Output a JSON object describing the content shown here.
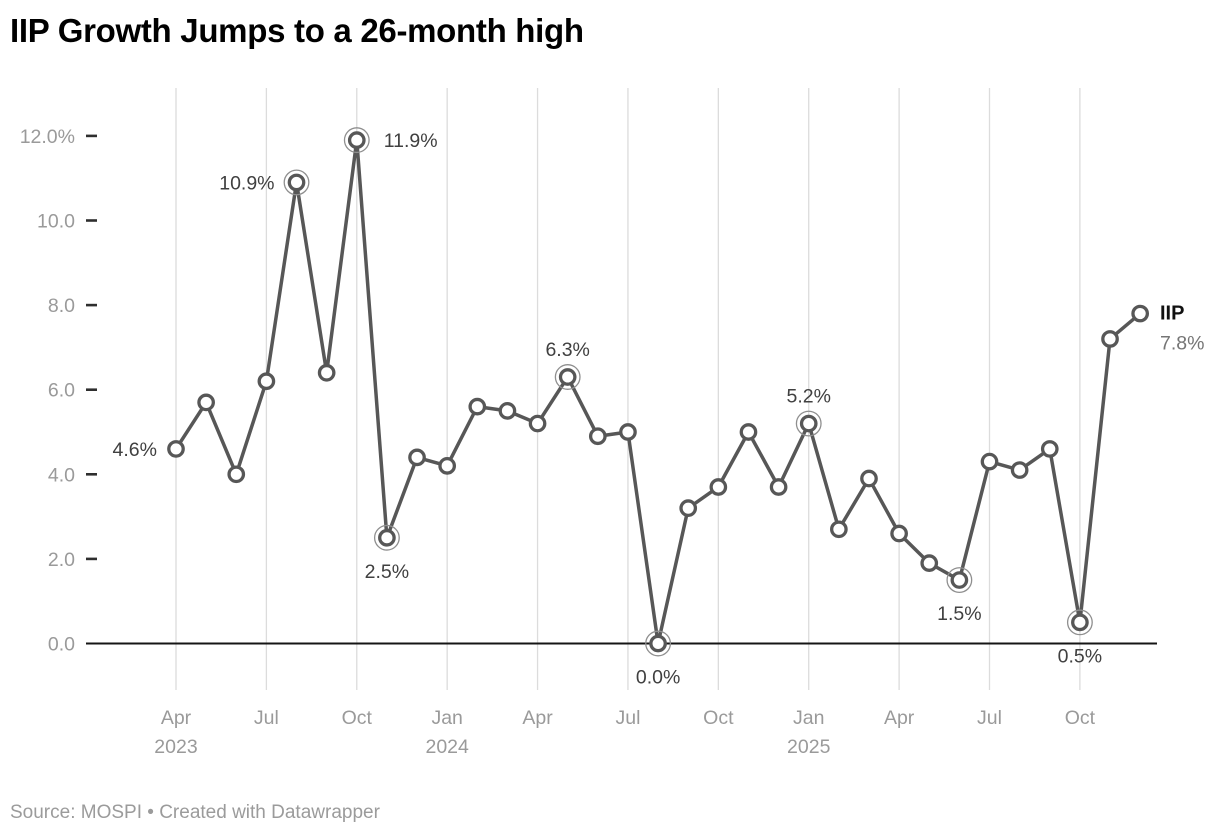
{
  "title": "IIP Growth Jumps to a 26-month high",
  "footer": "Source: MOSPI • Created with Datawrapper",
  "chart_data": {
    "type": "line",
    "title": "IIP Growth Jumps to a 26-month high",
    "source": "Source: MOSPI",
    "attribution": "Created with Datawrapper",
    "x": [
      "Apr 2023",
      "May 2023",
      "Jun 2023",
      "Jul 2023",
      "Aug 2023",
      "Sep 2023",
      "Oct 2023",
      "Nov 2023",
      "Dec 2023",
      "Jan 2024",
      "Feb 2024",
      "Mar 2024",
      "Apr 2024",
      "May 2024",
      "Jun 2024",
      "Jul 2024",
      "Aug 2024",
      "Sep 2024",
      "Oct 2024",
      "Nov 2024",
      "Dec 2024",
      "Jan 2025",
      "Feb 2025",
      "Mar 2025",
      "Apr 2025",
      "May 2025",
      "Jun 2025",
      "Jul 2025",
      "Aug 2025",
      "Sep 2025",
      "Oct 2025",
      "Nov 2025",
      "Dec 2025"
    ],
    "series": [
      {
        "name": "IIP",
        "values": [
          4.6,
          5.7,
          4.0,
          6.2,
          10.9,
          6.4,
          11.9,
          2.5,
          4.4,
          4.2,
          5.6,
          5.5,
          5.2,
          6.3,
          4.9,
          5.0,
          0.0,
          3.2,
          3.7,
          5.0,
          3.7,
          5.2,
          2.7,
          3.9,
          2.6,
          1.9,
          1.5,
          4.3,
          4.1,
          4.6,
          0.5,
          7.2,
          7.8
        ]
      }
    ],
    "unit": "%",
    "ylim": [
      0,
      12
    ],
    "grid": "vertical-only",
    "legend_position": "end-of-line",
    "yticks": [
      {
        "v": 0,
        "label": "0.0"
      },
      {
        "v": 2,
        "label": "2.0"
      },
      {
        "v": 4,
        "label": "4.0"
      },
      {
        "v": 6,
        "label": "6.0"
      },
      {
        "v": 8,
        "label": "8.0"
      },
      {
        "v": 10,
        "label": "10.0"
      },
      {
        "v": 12,
        "label": "12.0%"
      }
    ],
    "xticks": [
      {
        "i": 0,
        "month": "Apr",
        "year": "2023"
      },
      {
        "i": 3,
        "month": "Jul"
      },
      {
        "i": 6,
        "month": "Oct"
      },
      {
        "i": 9,
        "month": "Jan",
        "year": "2024"
      },
      {
        "i": 12,
        "month": "Apr"
      },
      {
        "i": 15,
        "month": "Jul"
      },
      {
        "i": 18,
        "month": "Oct"
      },
      {
        "i": 21,
        "month": "Jan",
        "year": "2025"
      },
      {
        "i": 24,
        "month": "Apr"
      },
      {
        "i": 27,
        "month": "Jul"
      },
      {
        "i": 30,
        "month": "Oct"
      }
    ],
    "annotations": [
      {
        "i": 0,
        "label": "4.6%",
        "side": "left",
        "ring": false
      },
      {
        "i": 4,
        "label": "10.9%",
        "side": "left",
        "ring": true
      },
      {
        "i": 6,
        "label": "11.9%",
        "side": "right",
        "ring": true
      },
      {
        "i": 7,
        "label": "2.5%",
        "side": "below",
        "ring": true
      },
      {
        "i": 13,
        "label": "6.3%",
        "side": "above",
        "ring": true
      },
      {
        "i": 16,
        "label": "0.0%",
        "side": "below",
        "ring": true
      },
      {
        "i": 21,
        "label": "5.2%",
        "side": "above",
        "ring": true
      },
      {
        "i": 26,
        "label": "1.5%",
        "side": "below",
        "ring": true
      },
      {
        "i": 30,
        "label": "0.5%",
        "side": "below",
        "ring": true
      }
    ],
    "end_label": {
      "series": "IIP",
      "value": "7.8%"
    },
    "colors": {
      "line": "#575757",
      "marker_fill": "#ffffff",
      "ring": "#8f8f8f",
      "grid": "#dcdcdc",
      "baseline": "#151515",
      "tick_dash": "#2e2e2e",
      "axis_text": "#9a9a9a",
      "data_label": "#404040",
      "end_name": "#111111",
      "end_value": "#757575",
      "title": "#000000",
      "footer": "#9b9b9b"
    }
  }
}
